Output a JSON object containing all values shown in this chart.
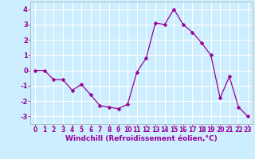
{
  "x": [
    0,
    1,
    2,
    3,
    4,
    5,
    6,
    7,
    8,
    9,
    10,
    11,
    12,
    13,
    14,
    15,
    16,
    17,
    18,
    19,
    20,
    21,
    22,
    23
  ],
  "y": [
    0.0,
    0.0,
    -0.6,
    -0.6,
    -1.3,
    -0.9,
    -1.6,
    -2.3,
    -2.4,
    -2.5,
    -2.2,
    -0.1,
    0.8,
    3.1,
    3.0,
    4.0,
    3.0,
    2.5,
    1.8,
    1.0,
    -1.8,
    -0.4,
    -2.4,
    -3.0
  ],
  "line_color": "#990099",
  "marker": "D",
  "marker_size": 2.5,
  "bg_color": "#cceeff",
  "grid_color": "#ffffff",
  "xlabel": "Windchill (Refroidissement éolien,°C)",
  "xlim": [
    -0.5,
    23.5
  ],
  "ylim": [
    -3.5,
    4.5
  ],
  "yticks": [
    -3,
    -2,
    -1,
    0,
    1,
    2,
    3,
    4
  ],
  "xticks": [
    0,
    1,
    2,
    3,
    4,
    5,
    6,
    7,
    8,
    9,
    10,
    11,
    12,
    13,
    14,
    15,
    16,
    17,
    18,
    19,
    20,
    21,
    22,
    23
  ],
  "tick_color": "#990099",
  "label_fontsize": 5.5,
  "xlabel_fontsize": 6.5
}
